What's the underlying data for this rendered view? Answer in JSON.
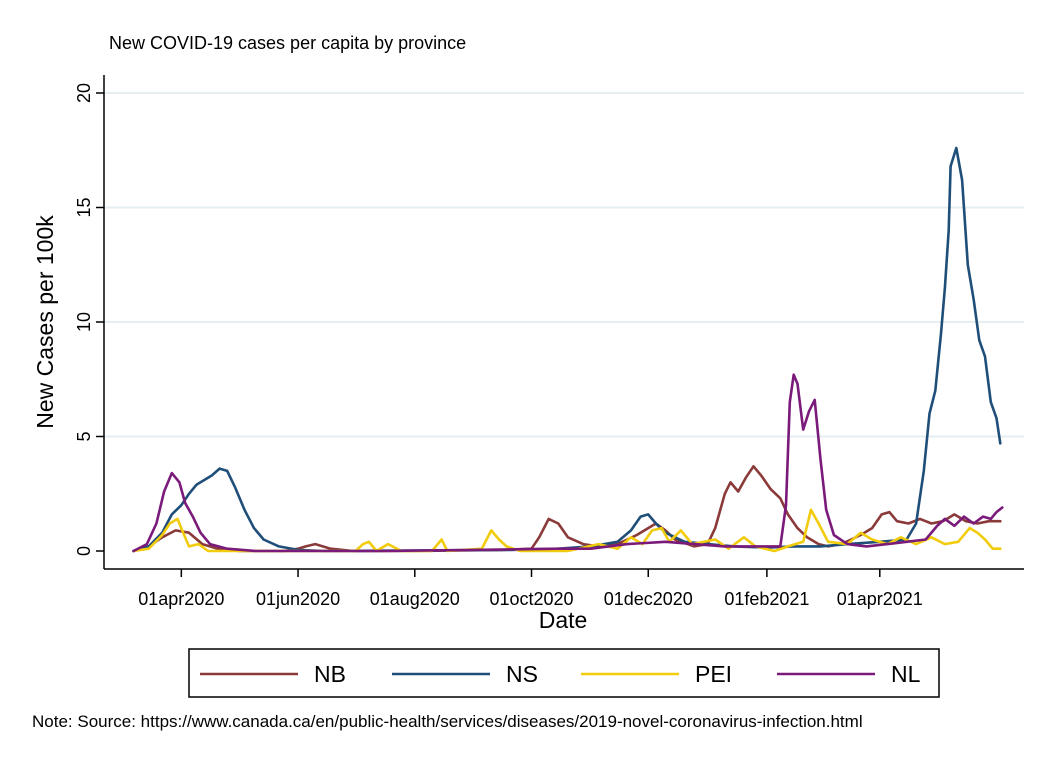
{
  "chart_data": {
    "type": "line",
    "title": "New COVID-19 cases per capita by province",
    "xlabel": "Date",
    "ylabel": "New Cases per 100k",
    "ylim": [
      0,
      20
    ],
    "yticks": [
      0,
      5,
      10,
      15,
      20
    ],
    "xlim": [
      "2020-03-01",
      "2021-06-07"
    ],
    "xticks": [
      {
        "date": "2020-04-01",
        "label": "01apr2020"
      },
      {
        "date": "2020-06-01",
        "label": "01jun2020"
      },
      {
        "date": "2020-08-01",
        "label": "01aug2020"
      },
      {
        "date": "2020-10-01",
        "label": "01oct2020"
      },
      {
        "date": "2020-12-01",
        "label": "01dec2020"
      },
      {
        "date": "2021-02-01",
        "label": "01feb2021"
      },
      {
        "date": "2021-04-01",
        "label": "01apr2021"
      }
    ],
    "grid": true,
    "legend_position": "bottom",
    "series": [
      {
        "name": "NB",
        "color": "#8b3a3a",
        "points": [
          [
            "2020-03-07",
            0
          ],
          [
            "2020-03-15",
            0.2
          ],
          [
            "2020-03-22",
            0.6
          ],
          [
            "2020-03-29",
            0.9
          ],
          [
            "2020-04-05",
            0.8
          ],
          [
            "2020-04-12",
            0.3
          ],
          [
            "2020-04-20",
            0.1
          ],
          [
            "2020-05-01",
            0.0
          ],
          [
            "2020-05-25",
            0.0
          ],
          [
            "2020-06-01",
            0.1
          ],
          [
            "2020-06-05",
            0.2
          ],
          [
            "2020-06-10",
            0.3
          ],
          [
            "2020-06-18",
            0.1
          ],
          [
            "2020-06-30",
            0.0
          ],
          [
            "2020-08-01",
            0.0
          ],
          [
            "2020-09-15",
            0.05
          ],
          [
            "2020-10-01",
            0.1
          ],
          [
            "2020-10-05",
            0.6
          ],
          [
            "2020-10-10",
            1.4
          ],
          [
            "2020-10-15",
            1.2
          ],
          [
            "2020-10-20",
            0.6
          ],
          [
            "2020-10-28",
            0.3
          ],
          [
            "2020-11-05",
            0.2
          ],
          [
            "2020-11-15",
            0.3
          ],
          [
            "2020-11-25",
            0.7
          ],
          [
            "2020-12-01",
            1.0
          ],
          [
            "2020-12-05",
            1.2
          ],
          [
            "2020-12-10",
            0.9
          ],
          [
            "2020-12-15",
            0.5
          ],
          [
            "2020-12-25",
            0.2
          ],
          [
            "2021-01-01",
            0.3
          ],
          [
            "2021-01-05",
            1.0
          ],
          [
            "2021-01-10",
            2.5
          ],
          [
            "2021-01-13",
            3.0
          ],
          [
            "2021-01-17",
            2.6
          ],
          [
            "2021-01-21",
            3.2
          ],
          [
            "2021-01-25",
            3.7
          ],
          [
            "2021-01-29",
            3.3
          ],
          [
            "2021-02-03",
            2.7
          ],
          [
            "2021-02-08",
            2.3
          ],
          [
            "2021-02-12",
            1.6
          ],
          [
            "2021-02-17",
            1.0
          ],
          [
            "2021-02-22",
            0.6
          ],
          [
            "2021-02-28",
            0.3
          ],
          [
            "2021-03-05",
            0.2
          ],
          [
            "2021-03-12",
            0.3
          ],
          [
            "2021-03-17",
            0.5
          ],
          [
            "2021-03-22",
            0.7
          ],
          [
            "2021-03-28",
            1.0
          ],
          [
            "2021-04-02",
            1.6
          ],
          [
            "2021-04-06",
            1.7
          ],
          [
            "2021-04-10",
            1.3
          ],
          [
            "2021-04-16",
            1.2
          ],
          [
            "2021-04-22",
            1.4
          ],
          [
            "2021-04-28",
            1.2
          ],
          [
            "2021-05-04",
            1.3
          ],
          [
            "2021-05-10",
            1.6
          ],
          [
            "2021-05-16",
            1.3
          ],
          [
            "2021-05-22",
            1.2
          ],
          [
            "2021-05-28",
            1.3
          ],
          [
            "2021-06-03",
            1.3
          ]
        ]
      },
      {
        "name": "NS",
        "color": "#1f4e79",
        "points": [
          [
            "2020-03-07",
            0
          ],
          [
            "2020-03-15",
            0.2
          ],
          [
            "2020-03-22",
            0.8
          ],
          [
            "2020-03-27",
            1.6
          ],
          [
            "2020-04-01",
            2.0
          ],
          [
            "2020-04-05",
            2.5
          ],
          [
            "2020-04-09",
            2.9
          ],
          [
            "2020-04-13",
            3.1
          ],
          [
            "2020-04-17",
            3.3
          ],
          [
            "2020-04-21",
            3.6
          ],
          [
            "2020-04-25",
            3.5
          ],
          [
            "2020-04-29",
            2.8
          ],
          [
            "2020-05-04",
            1.8
          ],
          [
            "2020-05-09",
            1.0
          ],
          [
            "2020-05-14",
            0.5
          ],
          [
            "2020-05-22",
            0.2
          ],
          [
            "2020-06-01",
            0.05
          ],
          [
            "2020-06-15",
            0.0
          ],
          [
            "2020-09-20",
            0.05
          ],
          [
            "2020-10-15",
            0.1
          ],
          [
            "2020-11-01",
            0.2
          ],
          [
            "2020-11-15",
            0.4
          ],
          [
            "2020-11-22",
            0.9
          ],
          [
            "2020-11-27",
            1.5
          ],
          [
            "2020-12-01",
            1.6
          ],
          [
            "2020-12-05",
            1.2
          ],
          [
            "2020-12-10",
            0.8
          ],
          [
            "2020-12-20",
            0.4
          ],
          [
            "2021-01-01",
            0.3
          ],
          [
            "2021-01-15",
            0.2
          ],
          [
            "2021-02-01",
            0.15
          ],
          [
            "2021-02-15",
            0.2
          ],
          [
            "2021-03-01",
            0.2
          ],
          [
            "2021-03-15",
            0.3
          ],
          [
            "2021-04-01",
            0.4
          ],
          [
            "2021-04-15",
            0.5
          ],
          [
            "2021-04-20",
            1.2
          ],
          [
            "2021-04-24",
            3.5
          ],
          [
            "2021-04-27",
            6.0
          ],
          [
            "2021-04-30",
            7.0
          ],
          [
            "2021-05-03",
            9.5
          ],
          [
            "2021-05-05",
            11.5
          ],
          [
            "2021-05-07",
            14.0
          ],
          [
            "2021-05-08",
            16.8
          ],
          [
            "2021-05-11",
            17.6
          ],
          [
            "2021-05-14",
            16.2
          ],
          [
            "2021-05-17",
            12.5
          ],
          [
            "2021-05-20",
            11.0
          ],
          [
            "2021-05-23",
            9.2
          ],
          [
            "2021-05-26",
            8.5
          ],
          [
            "2021-05-29",
            6.5
          ],
          [
            "2021-06-01",
            5.8
          ],
          [
            "2021-06-03",
            4.7
          ]
        ]
      },
      {
        "name": "PEI",
        "color": "#f2cc0c",
        "points": [
          [
            "2020-03-07",
            0
          ],
          [
            "2020-03-15",
            0.1
          ],
          [
            "2020-03-22",
            0.7
          ],
          [
            "2020-03-26",
            1.2
          ],
          [
            "2020-03-30",
            1.4
          ],
          [
            "2020-04-02",
            0.8
          ],
          [
            "2020-04-05",
            0.2
          ],
          [
            "2020-04-10",
            0.3
          ],
          [
            "2020-04-15",
            0.0
          ],
          [
            "2020-07-01",
            0.0
          ],
          [
            "2020-07-05",
            0.3
          ],
          [
            "2020-07-08",
            0.4
          ],
          [
            "2020-07-12",
            0.0
          ],
          [
            "2020-07-18",
            0.3
          ],
          [
            "2020-07-25",
            0.0
          ],
          [
            "2020-08-10",
            0.0
          ],
          [
            "2020-08-15",
            0.5
          ],
          [
            "2020-08-18",
            0.0
          ],
          [
            "2020-09-05",
            0.1
          ],
          [
            "2020-09-10",
            0.9
          ],
          [
            "2020-09-14",
            0.5
          ],
          [
            "2020-09-18",
            0.2
          ],
          [
            "2020-09-25",
            0.0
          ],
          [
            "2020-10-20",
            0.0
          ],
          [
            "2020-11-05",
            0.3
          ],
          [
            "2020-11-15",
            0.1
          ],
          [
            "2020-11-22",
            0.6
          ],
          [
            "2020-11-28",
            0.3
          ],
          [
            "2020-12-03",
            0.9
          ],
          [
            "2020-12-08",
            1.0
          ],
          [
            "2020-12-12",
            0.4
          ],
          [
            "2020-12-18",
            0.9
          ],
          [
            "2020-12-24",
            0.3
          ],
          [
            "2021-01-05",
            0.5
          ],
          [
            "2021-01-12",
            0.1
          ],
          [
            "2021-01-20",
            0.6
          ],
          [
            "2021-01-26",
            0.2
          ],
          [
            "2021-02-05",
            0.0
          ],
          [
            "2021-02-12",
            0.2
          ],
          [
            "2021-02-20",
            0.4
          ],
          [
            "2021-02-24",
            1.8
          ],
          [
            "2021-02-28",
            1.2
          ],
          [
            "2021-03-05",
            0.4
          ],
          [
            "2021-03-15",
            0.3
          ],
          [
            "2021-03-22",
            0.8
          ],
          [
            "2021-03-28",
            0.5
          ],
          [
            "2021-04-05",
            0.3
          ],
          [
            "2021-04-12",
            0.6
          ],
          [
            "2021-04-20",
            0.3
          ],
          [
            "2021-04-28",
            0.6
          ],
          [
            "2021-05-05",
            0.3
          ],
          [
            "2021-05-12",
            0.4
          ],
          [
            "2021-05-18",
            1.0
          ],
          [
            "2021-05-22",
            0.8
          ],
          [
            "2021-05-26",
            0.5
          ],
          [
            "2021-05-30",
            0.1
          ],
          [
            "2021-06-03",
            0.1
          ]
        ]
      },
      {
        "name": "NL",
        "color": "#7a1a7a",
        "points": [
          [
            "2020-03-07",
            0
          ],
          [
            "2020-03-14",
            0.3
          ],
          [
            "2020-03-19",
            1.2
          ],
          [
            "2020-03-23",
            2.6
          ],
          [
            "2020-03-27",
            3.4
          ],
          [
            "2020-03-31",
            3.0
          ],
          [
            "2020-04-03",
            2.1
          ],
          [
            "2020-04-07",
            1.5
          ],
          [
            "2020-04-11",
            0.8
          ],
          [
            "2020-04-16",
            0.3
          ],
          [
            "2020-04-25",
            0.1
          ],
          [
            "2020-05-10",
            0.0
          ],
          [
            "2020-07-15",
            0.0
          ],
          [
            "2020-09-01",
            0.05
          ],
          [
            "2020-10-15",
            0.1
          ],
          [
            "2020-11-01",
            0.1
          ],
          [
            "2020-11-20",
            0.3
          ],
          [
            "2020-12-10",
            0.4
          ],
          [
            "2020-12-25",
            0.3
          ],
          [
            "2021-01-10",
            0.2
          ],
          [
            "2021-02-01",
            0.2
          ],
          [
            "2021-02-08",
            0.2
          ],
          [
            "2021-02-11",
            2.0
          ],
          [
            "2021-02-13",
            6.5
          ],
          [
            "2021-02-15",
            7.7
          ],
          [
            "2021-02-17",
            7.3
          ],
          [
            "2021-02-20",
            5.3
          ],
          [
            "2021-02-23",
            6.1
          ],
          [
            "2021-02-26",
            6.6
          ],
          [
            "2021-03-01",
            4.0
          ],
          [
            "2021-03-04",
            1.8
          ],
          [
            "2021-03-08",
            0.7
          ],
          [
            "2021-03-15",
            0.3
          ],
          [
            "2021-03-25",
            0.2
          ],
          [
            "2021-04-05",
            0.3
          ],
          [
            "2021-04-15",
            0.4
          ],
          [
            "2021-04-25",
            0.5
          ],
          [
            "2021-05-01",
            1.1
          ],
          [
            "2021-05-05",
            1.4
          ],
          [
            "2021-05-10",
            1.1
          ],
          [
            "2021-05-15",
            1.5
          ],
          [
            "2021-05-20",
            1.2
          ],
          [
            "2021-05-25",
            1.5
          ],
          [
            "2021-05-29",
            1.4
          ],
          [
            "2021-06-01",
            1.7
          ],
          [
            "2021-06-04",
            1.9
          ]
        ]
      }
    ],
    "note": "Note: Source: https://www.canada.ca/en/public-health/services/diseases/2019-novel-coronavirus-infection.html"
  }
}
